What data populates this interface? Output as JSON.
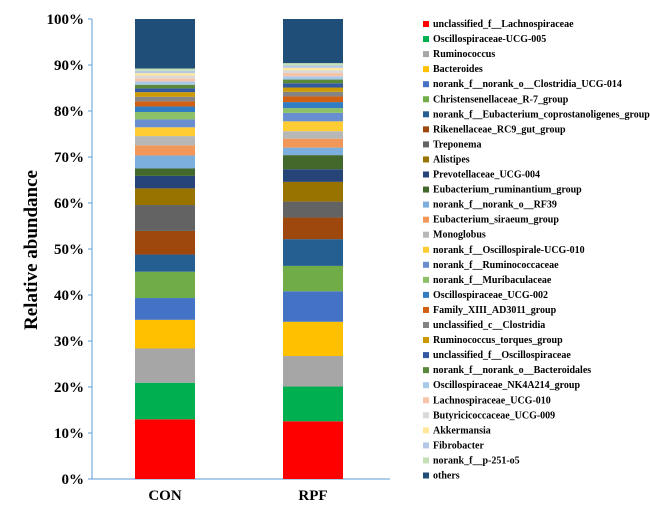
{
  "chart_data": {
    "type": "bar",
    "stacked": true,
    "percent": true,
    "ylabel": "Relative abundance",
    "xlabel": "",
    "ylim": [
      0,
      100
    ],
    "yticks": [
      "0%",
      "10%",
      "20%",
      "30%",
      "40%",
      "50%",
      "60%",
      "70%",
      "80%",
      "90%",
      "100%"
    ],
    "categories": [
      "CON",
      "RPF"
    ],
    "legend_position": "right",
    "grid": false,
    "series": [
      {
        "name": "unclassified_f__Lachnospiraceae",
        "color": "#ff0000",
        "values": [
          12.9,
          12.3
        ]
      },
      {
        "name": "Oscillospiraceae-UCG-005",
        "color": "#00b050",
        "values": [
          7.9,
          7.4
        ]
      },
      {
        "name": "Ruminococcus",
        "color": "#a6a6a6",
        "values": [
          7.4,
          6.5
        ]
      },
      {
        "name": "Bacteroides",
        "color": "#ffc000",
        "values": [
          6.2,
          7.3
        ]
      },
      {
        "name": "norank_f__norank_o__Clostridia_UCG-014",
        "color": "#4472c4",
        "values": [
          4.7,
          6.5
        ]
      },
      {
        "name": "Christensenellaceae_R-7_group",
        "color": "#70ad47",
        "values": [
          5.7,
          5.4
        ]
      },
      {
        "name": "norank_f__Eubacterium_coprostanoligenes_group",
        "color": "#255e91",
        "values": [
          3.7,
          5.7
        ]
      },
      {
        "name": "Rikenellaceae_RC9_gut_group",
        "color": "#9e480e",
        "values": [
          5.1,
          4.6
        ]
      },
      {
        "name": "Treponema",
        "color": "#636363",
        "values": [
          5.6,
          3.4
        ]
      },
      {
        "name": "Alistipes",
        "color": "#997300",
        "values": [
          3.6,
          4.2
        ]
      },
      {
        "name": "Prevotellaceae_UCG-004",
        "color": "#264478",
        "values": [
          2.7,
          2.7
        ]
      },
      {
        "name": "Eubacterium_ruminantium_group",
        "color": "#43682b",
        "values": [
          1.6,
          3.0
        ]
      },
      {
        "name": "norank_f__norank_o__RF39",
        "color": "#7cafdd",
        "values": [
          2.8,
          1.6
        ]
      },
      {
        "name": "Eubacterium_siraeum_group",
        "color": "#f1975a",
        "values": [
          2.2,
          1.9
        ]
      },
      {
        "name": "Monoglobus",
        "color": "#b7b7b7",
        "values": [
          2.0,
          1.6
        ]
      },
      {
        "name": "norank_f__Oscillospirale-UCG-010",
        "color": "#ffcd33",
        "values": [
          1.9,
          2.1
        ]
      },
      {
        "name": "norank_f__Ruminococcaceae",
        "color": "#698ed0",
        "values": [
          1.7,
          1.8
        ]
      },
      {
        "name": "norank_f__Muribaculaceae",
        "color": "#8cc168",
        "values": [
          1.6,
          1.0
        ]
      },
      {
        "name": "Oscillospiraceae_UCG-002",
        "color": "#327dc2",
        "values": [
          1.2,
          1.3
        ]
      },
      {
        "name": "Family_XIII_AD3011_group",
        "color": "#d26012",
        "values": [
          1.1,
          1.2
        ]
      },
      {
        "name": "unclassified_c__Clostridia",
        "color": "#848484",
        "values": [
          1.0,
          1.0
        ]
      },
      {
        "name": "Ruminococcus_torques_group",
        "color": "#cc9a00",
        "values": [
          1.0,
          0.9
        ]
      },
      {
        "name": "unclassified_f__Oscillospiraceae",
        "color": "#335aa1",
        "values": [
          0.8,
          0.9
        ]
      },
      {
        "name": "norank_f__norank_o__Bacteroidales",
        "color": "#5a8a39",
        "values": [
          0.8,
          0.8
        ]
      },
      {
        "name": "Oscillospiraceae_NK4A214_group",
        "color": "#a9c9ea",
        "values": [
          0.7,
          0.7
        ]
      },
      {
        "name": "Lachnospiraceae_UCG-010",
        "color": "#f8c4a8",
        "values": [
          0.7,
          0.7
        ]
      },
      {
        "name": "Butyricicoccaceae_UCG-009",
        "color": "#d9d9d9",
        "values": [
          0.6,
          0.6
        ]
      },
      {
        "name": "Akkermansia",
        "color": "#ffe699",
        "values": [
          0.5,
          0.5
        ]
      },
      {
        "name": "Fibrobacter",
        "color": "#b4c7e7",
        "values": [
          0.5,
          0.5
        ]
      },
      {
        "name": "norank_f__p-251-o5",
        "color": "#c5e0b4",
        "values": [
          0.5,
          0.5
        ]
      },
      {
        "name": "others",
        "color": "#1f4e79",
        "values": [
          10.7,
          9.4
        ]
      }
    ]
  }
}
